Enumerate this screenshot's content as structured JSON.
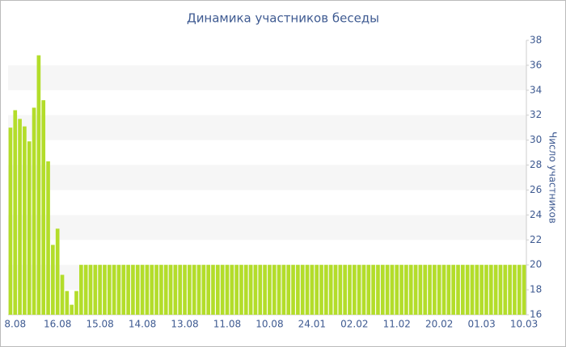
{
  "chart_data": {
    "type": "bar",
    "title": "Динамика участников беседы",
    "y_axis_label": "Число участников",
    "categories": [
      null,
      "8.08",
      null,
      null,
      null,
      null,
      null,
      null,
      null,
      null,
      "16.08",
      null,
      null,
      null,
      null,
      null,
      null,
      null,
      null,
      "15.08",
      null,
      null,
      null,
      null,
      null,
      null,
      null,
      null,
      "14.08",
      null,
      null,
      null,
      null,
      null,
      null,
      null,
      null,
      "13.08",
      null,
      null,
      null,
      null,
      null,
      null,
      null,
      null,
      "11.08",
      null,
      null,
      null,
      null,
      null,
      null,
      null,
      null,
      "10.08",
      null,
      null,
      null,
      null,
      null,
      null,
      null,
      null,
      "24.01",
      null,
      null,
      null,
      null,
      null,
      null,
      null,
      null,
      "02.02",
      null,
      null,
      null,
      null,
      null,
      null,
      null,
      null,
      "11.02",
      null,
      null,
      null,
      null,
      null,
      null,
      null,
      null,
      "20.02",
      null,
      null,
      null,
      null,
      null,
      null,
      null,
      null,
      "01.03",
      null,
      null,
      null,
      null,
      null,
      null,
      null,
      null,
      "10.03"
    ],
    "values": [
      31,
      32.4,
      31.7,
      31.1,
      29.9,
      32.6,
      36.8,
      33.2,
      28.3,
      21.6,
      22.9,
      19.2,
      17.9,
      16.8,
      17.9,
      20,
      20,
      20,
      20,
      20,
      20,
      20,
      20,
      20,
      20,
      20,
      20,
      20,
      20,
      20,
      20,
      20,
      20,
      20,
      20,
      20,
      20,
      20,
      20,
      20,
      20,
      20,
      20,
      20,
      20,
      20,
      20,
      20,
      20,
      20,
      20,
      20,
      20,
      20,
      20,
      20,
      20,
      20,
      20,
      20,
      20,
      20,
      20,
      20,
      20,
      20,
      20,
      20,
      20,
      20,
      20,
      20,
      20,
      20,
      20,
      20,
      20,
      20,
      20,
      20,
      20,
      20,
      20,
      20,
      20,
      20,
      20,
      20,
      20,
      20,
      20,
      20,
      20,
      20,
      20,
      20,
      20,
      20,
      20,
      20,
      20,
      20,
      20,
      20,
      20,
      20,
      20,
      20,
      20,
      20
    ],
    "color": "#b3dd2a",
    "ylim": [
      16,
      38
    ],
    "yticks": [
      16,
      18,
      20,
      22,
      24,
      26,
      28,
      30,
      32,
      34,
      36,
      38
    ],
    "grid": true
  }
}
